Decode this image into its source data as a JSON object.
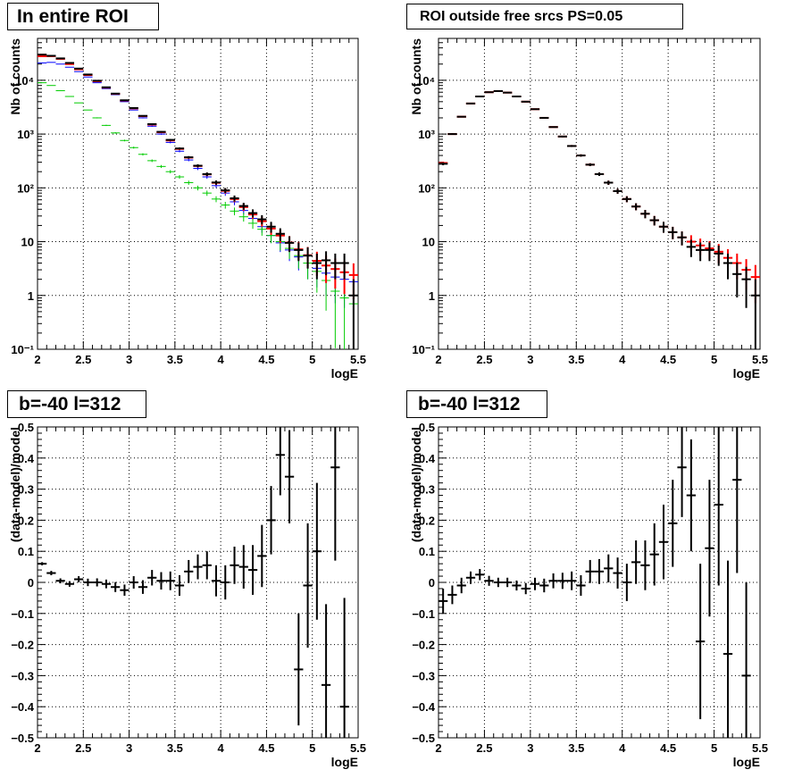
{
  "colors": {
    "data": "#000000",
    "model": "#ff0000",
    "total_model": "#0000ff",
    "diffuse": "#00cc00",
    "grid": "#000000"
  },
  "chart_data": [
    {
      "type": "scatter",
      "title": "In entire ROI",
      "xlabel": "logE",
      "ylabel": "Nb of counts",
      "xlim": [
        2,
        5.5
      ],
      "ylim": [
        0.1,
        60000
      ],
      "yscale": "log",
      "grid": true,
      "x_ticks": [
        "2",
        "2.5",
        "3",
        "3.5",
        "4",
        "4.5",
        "5",
        "5.5"
      ],
      "y_ticks": [
        "10⁻¹",
        "1",
        "10",
        "10²",
        "10³",
        "10⁴"
      ],
      "x": [
        2.05,
        2.15,
        2.25,
        2.35,
        2.45,
        2.55,
        2.65,
        2.75,
        2.85,
        2.95,
        3.05,
        3.15,
        3.25,
        3.35,
        3.45,
        3.55,
        3.65,
        3.75,
        3.85,
        3.95,
        4.05,
        4.15,
        4.25,
        4.35,
        4.45,
        4.55,
        4.65,
        4.75,
        4.85,
        4.95,
        5.05,
        5.15,
        5.25,
        5.35,
        5.45
      ],
      "series": [
        {
          "name": "",
          "color": "#0000ff",
          "values": [
            21000,
            21500,
            20000,
            17500,
            14500,
            11500,
            9000,
            7000,
            5400,
            4000,
            2800,
            2000,
            1400,
            1000,
            700,
            480,
            330,
            230,
            160,
            110,
            80,
            55,
            38,
            27,
            19,
            13,
            9.5,
            7,
            5.2,
            4,
            3.2,
            2.6,
            2.2,
            2.0,
            1.8
          ]
        },
        {
          "name": "",
          "color": "#00cc00",
          "values": [
            9000,
            8000,
            6400,
            5000,
            3800,
            2800,
            2000,
            1450,
            1050,
            760,
            560,
            420,
            320,
            250,
            200,
            160,
            125,
            100,
            80,
            62,
            48,
            37,
            29,
            22,
            17,
            13,
            10,
            7.5,
            5.5,
            4,
            2.8,
            1.9,
            1.2,
            0.9,
            0.7
          ]
        },
        {
          "name": "",
          "color": "#ff0000",
          "values": [
            28000,
            28000,
            25000,
            20000,
            16000,
            12500,
            9600,
            7300,
            5600,
            4200,
            3000,
            2150,
            1500,
            1080,
            760,
            530,
            365,
            255,
            178,
            124,
            88,
            62,
            44,
            32,
            24,
            17.5,
            13,
            9.6,
            7.2,
            5.6,
            4.4,
            3.6,
            3.1,
            2.7,
            2.4
          ]
        },
        {
          "name": "",
          "color": "#000000",
          "values": [
            30000,
            28500,
            25500,
            21000,
            16500,
            12800,
            9800,
            7400,
            5650,
            4250,
            3050,
            2180,
            1530,
            1100,
            780,
            540,
            370,
            258,
            180,
            126,
            90,
            64,
            46,
            34,
            26,
            19,
            14,
            9.5,
            7,
            5.5,
            4,
            4.5,
            4,
            4,
            1
          ]
        }
      ]
    },
    {
      "type": "scatter",
      "title": "ROI outside free srcs PS=0.05",
      "xlabel": "logE",
      "ylabel": "Nb of counts",
      "xlim": [
        2,
        5.5
      ],
      "ylim": [
        0.1,
        60000
      ],
      "yscale": "log",
      "grid": true,
      "x_ticks": [
        "2",
        "2.5",
        "3",
        "3.5",
        "4",
        "4.5",
        "5",
        "5.5"
      ],
      "y_ticks": [
        "10⁻¹",
        "1",
        "10",
        "10²",
        "10³",
        "10⁴"
      ],
      "x": [
        2.05,
        2.15,
        2.25,
        2.35,
        2.45,
        2.55,
        2.65,
        2.75,
        2.85,
        2.95,
        3.05,
        3.15,
        3.25,
        3.35,
        3.45,
        3.55,
        3.65,
        3.75,
        3.85,
        3.95,
        4.05,
        4.15,
        4.25,
        4.35,
        4.45,
        4.55,
        4.65,
        4.75,
        4.85,
        4.95,
        5.05,
        5.15,
        5.25,
        5.35,
        5.45
      ],
      "series": [
        {
          "name": "",
          "color": "#ff0000",
          "values": [
            290,
            1000,
            2100,
            3700,
            5000,
            6000,
            6300,
            5900,
            5000,
            4000,
            2900,
            2000,
            1350,
            900,
            600,
            400,
            270,
            180,
            125,
            87,
            62,
            45,
            33,
            25,
            19,
            15,
            12,
            10,
            8.5,
            7.5,
            6.5,
            5,
            4,
            3,
            2.2
          ]
        },
        {
          "name": "",
          "color": "#000000",
          "values": [
            280,
            1000,
            2100,
            3700,
            5000,
            6000,
            6300,
            5900,
            5000,
            4000,
            2900,
            2000,
            1350,
            900,
            600,
            400,
            270,
            180,
            125,
            87,
            62,
            45,
            33,
            25,
            19,
            15,
            12,
            8,
            7,
            7,
            6,
            4,
            2.5,
            2,
            1
          ]
        }
      ]
    },
    {
      "type": "scatter",
      "title": "b=-40 l=312",
      "xlabel": "logE",
      "ylabel": "(data-model)/model",
      "xlim": [
        2,
        5.5
      ],
      "ylim": [
        -0.5,
        0.5
      ],
      "grid": true,
      "x_ticks": [
        "2",
        "2.5",
        "3",
        "3.5",
        "4",
        "4.5",
        "5",
        "5.5"
      ],
      "y_ticks": [
        "−0.5",
        "−0.4",
        "−0.3",
        "−0.2",
        "−0.1",
        "0",
        "0.1",
        "0.2",
        "0.3",
        "0.4",
        "0.5"
      ],
      "x": [
        2.05,
        2.15,
        2.25,
        2.35,
        2.45,
        2.55,
        2.65,
        2.75,
        2.85,
        2.95,
        3.05,
        3.15,
        3.25,
        3.35,
        3.45,
        3.55,
        3.65,
        3.75,
        3.85,
        3.95,
        4.05,
        4.15,
        4.25,
        4.35,
        4.45,
        4.55,
        4.65,
        4.75,
        4.85,
        4.95,
        5.05,
        5.15,
        5.25,
        5.35
      ],
      "series": [
        {
          "name": "",
          "color": "#000000",
          "values": [
            0.06,
            0.03,
            0.005,
            -0.005,
            0.01,
            0.0,
            0.0,
            -0.005,
            -0.015,
            -0.025,
            0.0,
            -0.015,
            0.015,
            0.005,
            0.005,
            -0.01,
            0.035,
            0.05,
            0.055,
            0.005,
            0.0,
            0.055,
            0.05,
            0.04,
            0.085,
            0.2,
            0.41,
            0.34,
            -0.28,
            -0.01,
            0.1,
            -0.33,
            0.37,
            -0.4
          ],
          "errors": [
            0.005,
            0.007,
            0.008,
            0.009,
            0.01,
            0.012,
            0.013,
            0.014,
            0.016,
            0.018,
            0.02,
            0.022,
            0.025,
            0.028,
            0.03,
            0.033,
            0.037,
            0.04,
            0.045,
            0.05,
            0.055,
            0.06,
            0.07,
            0.08,
            0.1,
            0.11,
            0.13,
            0.15,
            0.18,
            0.2,
            0.22,
            0.26,
            0.3,
            0.35
          ]
        }
      ]
    },
    {
      "type": "scatter",
      "title": "b=-40 l=312",
      "xlabel": "logE",
      "ylabel": "(data-model)/model",
      "xlim": [
        2,
        5.5
      ],
      "ylim": [
        -0.5,
        0.5
      ],
      "grid": true,
      "x_ticks": [
        "2",
        "2.5",
        "3",
        "3.5",
        "4",
        "4.5",
        "5",
        "5.5"
      ],
      "y_ticks": [
        "−0.5",
        "−0.4",
        "−0.3",
        "−0.2",
        "−0.1",
        "0",
        "0.1",
        "0.2",
        "0.3",
        "0.4",
        "0.5"
      ],
      "x": [
        2.05,
        2.15,
        2.25,
        2.35,
        2.45,
        2.55,
        2.65,
        2.75,
        2.85,
        2.95,
        3.05,
        3.15,
        3.25,
        3.35,
        3.45,
        3.55,
        3.65,
        3.75,
        3.85,
        3.95,
        4.05,
        4.15,
        4.25,
        4.35,
        4.45,
        4.55,
        4.65,
        4.75,
        4.85,
        4.95,
        5.05,
        5.15,
        5.25,
        5.35
      ],
      "series": [
        {
          "name": "",
          "color": "#000000",
          "values": [
            -0.06,
            -0.04,
            -0.01,
            0.015,
            0.025,
            0.005,
            0.0,
            0.0,
            -0.01,
            -0.02,
            -0.005,
            -0.01,
            0.005,
            0.005,
            0.005,
            -0.01,
            0.035,
            0.035,
            0.045,
            0.03,
            0.0,
            0.065,
            0.055,
            0.09,
            0.13,
            0.19,
            0.37,
            0.28,
            -0.19,
            0.11,
            0.25,
            -0.23,
            0.33,
            -0.3
          ],
          "errors": [
            0.04,
            0.03,
            0.025,
            0.02,
            0.018,
            0.016,
            0.015,
            0.015,
            0.016,
            0.018,
            0.02,
            0.022,
            0.024,
            0.026,
            0.03,
            0.033,
            0.037,
            0.04,
            0.045,
            0.05,
            0.06,
            0.07,
            0.08,
            0.1,
            0.12,
            0.14,
            0.16,
            0.18,
            0.25,
            0.22,
            0.26,
            0.3,
            0.3,
            0.3
          ]
        }
      ]
    }
  ]
}
